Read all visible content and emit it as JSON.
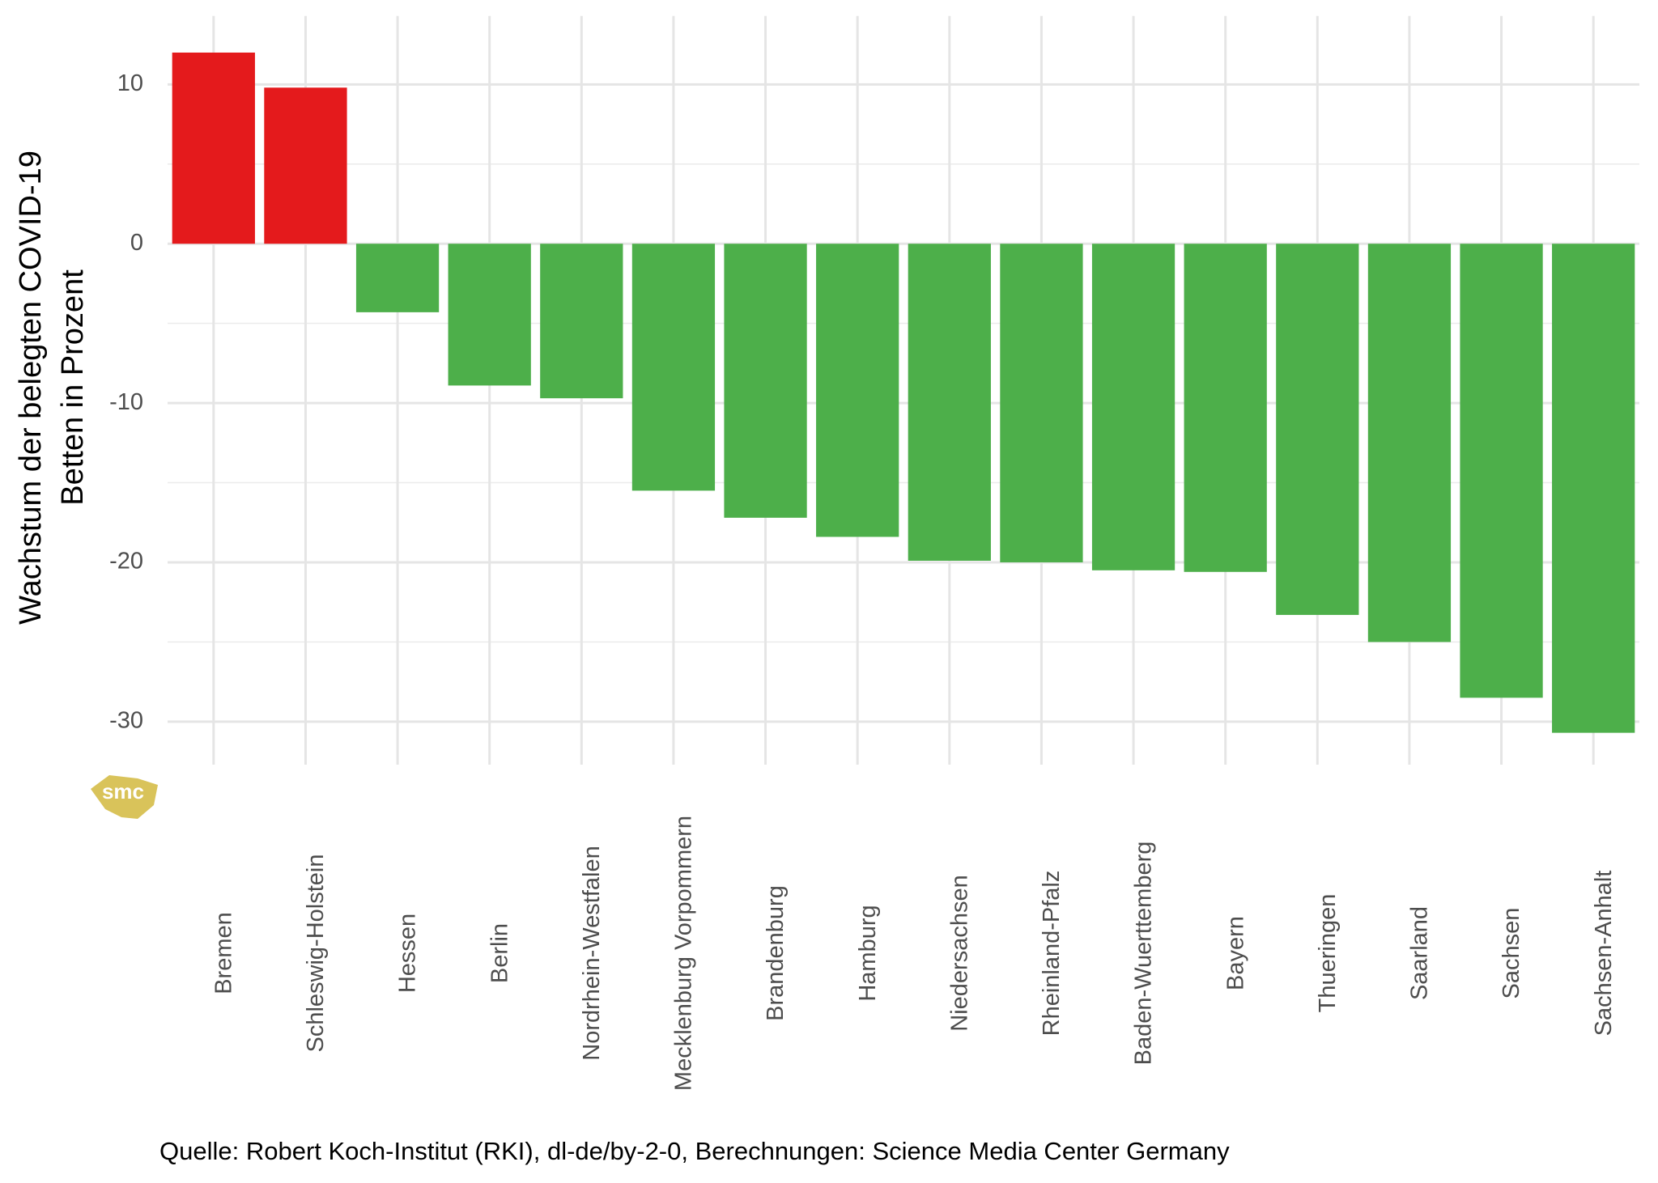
{
  "chart_data": {
    "type": "bar",
    "ylabel": [
      "Wachstum der belegten COVID-19",
      "Betten in Prozent"
    ],
    "caption": "Quelle: Robert Koch-Institut (RKI), dl-de/by-2-0, Berechnungen: Science Media Center Germany",
    "logo": "smc",
    "categories": [
      "Bremen",
      "Schleswig-Holstein",
      "Hessen",
      "Berlin",
      "Nordrhein-Westfalen",
      "Mecklenburg Vorpommern",
      "Brandenburg",
      "Hamburg",
      "Niedersachsen",
      "Rheinland-Pfalz",
      "Baden-Wuerttemberg",
      "Bayern",
      "Thueringen",
      "Saarland",
      "Sachsen",
      "Sachsen-Anhalt"
    ],
    "values": [
      12.0,
      9.8,
      -4.3,
      -8.9,
      -9.7,
      -15.5,
      -17.2,
      -18.4,
      -19.9,
      -20.0,
      -20.5,
      -20.6,
      -23.3,
      -25.0,
      -28.5,
      -30.7
    ],
    "colors": [
      "#e41a1c",
      "#e41a1c",
      "#4daf4a",
      "#4daf4a",
      "#4daf4a",
      "#4daf4a",
      "#4daf4a",
      "#4daf4a",
      "#4daf4a",
      "#4daf4a",
      "#4daf4a",
      "#4daf4a",
      "#4daf4a",
      "#4daf4a",
      "#4daf4a",
      "#4daf4a"
    ],
    "ylim": [
      -32.7,
      14.3
    ],
    "yticks": [
      -30,
      -20,
      -10,
      0,
      10
    ],
    "yminorticks": [
      -25,
      -15,
      -5,
      5
    ],
    "grid": true
  }
}
